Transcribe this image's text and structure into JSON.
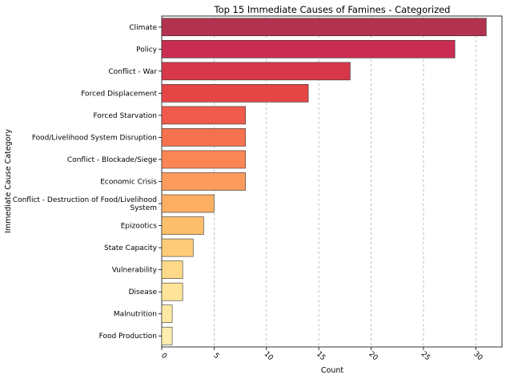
{
  "chart_data": {
    "type": "bar",
    "orientation": "horizontal",
    "title": "Top 15 Immediate Causes of Famines - Categorized",
    "xlabel": "Count",
    "ylabel": "Immediate Cause Category",
    "xlim": [
      0,
      32.5
    ],
    "xticks": [
      0,
      5,
      10,
      15,
      20,
      25,
      30
    ],
    "grid": "x-dashed",
    "categories": [
      "Climate",
      "Policy",
      "Conflict - War",
      "Forced Displacement",
      "Forced Starvation",
      "Food/Livelihood System Disruption",
      "Conflict - Blockade/Siege",
      "Economic Crisis",
      "Conflict - Destruction of Food/Livelihood System",
      "Epizootics",
      "State Capacity",
      "Vulnerability",
      "Disease",
      "Malnutrition",
      "Food Production"
    ],
    "category_lines": [
      [
        "Climate"
      ],
      [
        "Policy"
      ],
      [
        "Conflict - War"
      ],
      [
        "Forced Displacement"
      ],
      [
        "Forced Starvation"
      ],
      [
        "Food/Livelihood System Disruption"
      ],
      [
        "Conflict - Blockade/Siege"
      ],
      [
        "Economic Crisis"
      ],
      [
        "Conflict - Destruction of Food/Livelihood",
        "System"
      ],
      [
        "Epizootics"
      ],
      [
        "State Capacity"
      ],
      [
        "Vulnerability"
      ],
      [
        "Disease"
      ],
      [
        "Malnutrition"
      ],
      [
        "Food Production"
      ]
    ],
    "values": [
      31,
      28,
      18,
      14,
      8,
      8,
      8,
      8,
      5,
      4,
      3,
      2,
      2,
      1,
      1
    ],
    "colors": [
      "#b3324f",
      "#c92d52",
      "#d6384a",
      "#e44646",
      "#ef5a4c",
      "#f6714d",
      "#fa8656",
      "#fb9b5e",
      "#fcae63",
      "#fdbf6c",
      "#fdcc78",
      "#fed989",
      "#fee398",
      "#fee9a4",
      "#feeeaf"
    ]
  }
}
